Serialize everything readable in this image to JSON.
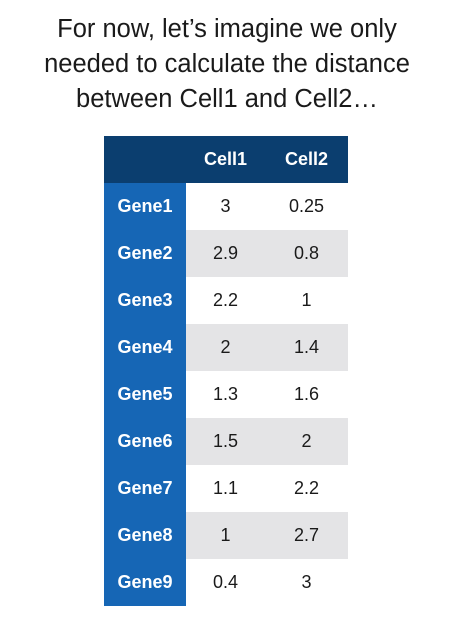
{
  "caption": {
    "lines": [
      "For now, let’s imagine we only",
      "needed to calculate the distance",
      "between Cell1 and Cell2…"
    ]
  },
  "table": {
    "columns": [
      "Cell1",
      "Cell2"
    ],
    "rows": [
      {
        "gene": "Gene1",
        "cell1": "3",
        "cell2": "0.25"
      },
      {
        "gene": "Gene2",
        "cell1": "2.9",
        "cell2": "0.8"
      },
      {
        "gene": "Gene3",
        "cell1": "2.2",
        "cell2": "1"
      },
      {
        "gene": "Gene4",
        "cell1": "2",
        "cell2": "1.4"
      },
      {
        "gene": "Gene5",
        "cell1": "1.3",
        "cell2": "1.6"
      },
      {
        "gene": "Gene6",
        "cell1": "1.5",
        "cell2": "2"
      },
      {
        "gene": "Gene7",
        "cell1": "1.1",
        "cell2": "2.2"
      },
      {
        "gene": "Gene8",
        "cell1": "1",
        "cell2": "2.7"
      },
      {
        "gene": "Gene9",
        "cell1": "0.4",
        "cell2": "3"
      }
    ]
  },
  "colors": {
    "header_bg": "#0b3e6f",
    "row_label_bg": "#1666b5",
    "stripe_bg": "#e4e4e6"
  }
}
